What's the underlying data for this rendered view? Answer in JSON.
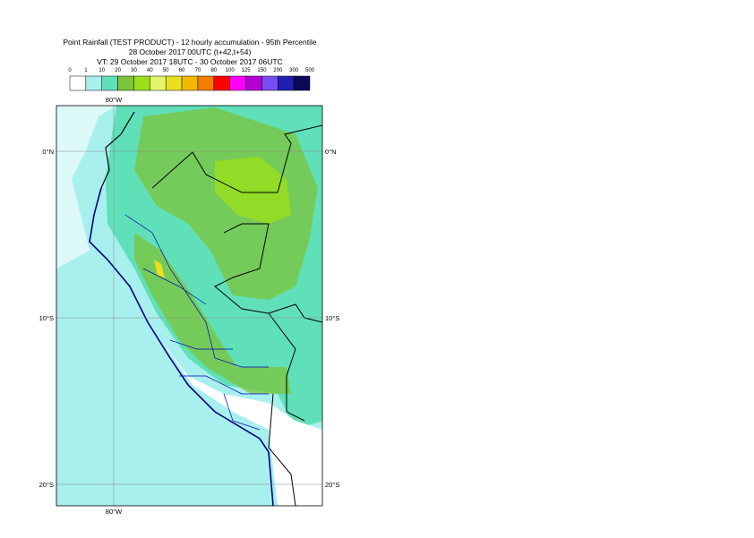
{
  "title": {
    "lines": [
      "Point Rainfall (TEST PRODUCT) - 12 hourly accumulation - 95th Percentile",
      "28 October 2017 00UTC (t+42,t+54)",
      "VT: 29 October 2017 18UTC - 30 October 2017 06UTC"
    ]
  },
  "legend": {
    "labels": [
      "0",
      "1",
      "10",
      "20",
      "30",
      "40",
      "50",
      "60",
      "70",
      "80",
      "100",
      "125",
      "150",
      "200",
      "300",
      "500"
    ],
    "colors": [
      "#ffffff",
      "#a8f0ee",
      "#5fe0b8",
      "#7cc43a",
      "#9ae01c",
      "#e2f56a",
      "#e8e020",
      "#f5b800",
      "#f57d00",
      "#ff0000",
      "#ff00ff",
      "#b400d2",
      "#7a4cf5",
      "#2020b0",
      "#0a0a5a"
    ]
  },
  "map": {
    "lon_labels": [
      "80°W"
    ],
    "lat_labels": [
      "0°N",
      "10°S",
      "20°S"
    ]
  }
}
